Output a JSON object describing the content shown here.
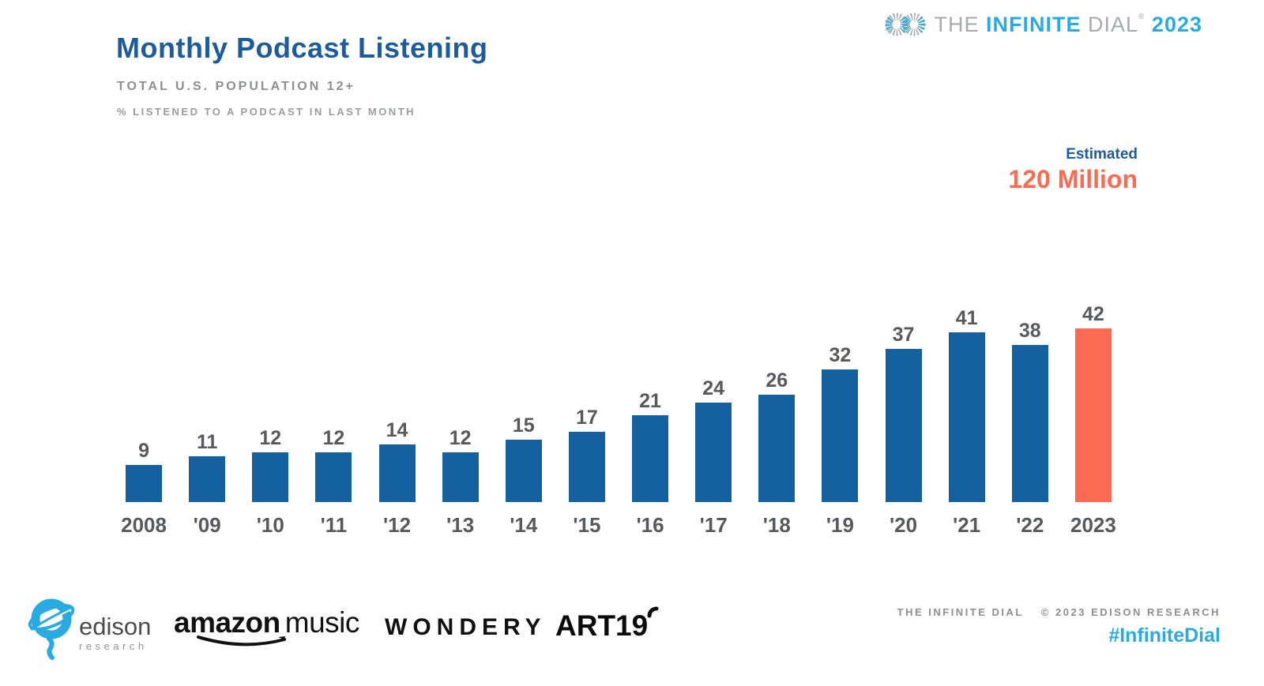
{
  "header": {
    "title": "Monthly Podcast Listening",
    "subtitle1": "TOTAL U.S. POPULATION 12+",
    "subtitle2": "% LISTENED TO A PODCAST IN LAST MONTH"
  },
  "brand_logo": {
    "the": "THE",
    "infinite": "INFINITE",
    "dial": "DIAL",
    "registered": "®",
    "year": "2023",
    "gray": "#A7A9AC",
    "lightblue": "#29ABE2"
  },
  "estimate": {
    "label": "Estimated",
    "value": "120 Million",
    "label_color": "#1D5C9C",
    "value_color": "#FB6A52"
  },
  "chart_data": {
    "type": "bar",
    "title": "Monthly Podcast Listening",
    "categories": [
      "2008",
      "'09",
      "'10",
      "'11",
      "'12",
      "'13",
      "'14",
      "'15",
      "'16",
      "'17",
      "'18",
      "'19",
      "'20",
      "'21",
      "'22",
      "2023"
    ],
    "values": [
      9,
      11,
      12,
      12,
      14,
      12,
      15,
      17,
      21,
      24,
      26,
      32,
      37,
      41,
      38,
      42
    ],
    "unit": "percent",
    "xlabel": "",
    "ylabel": "% listened to a podcast in last month",
    "ylim": [
      0,
      42
    ],
    "grid": false,
    "legend": "none",
    "bar_color": "#15609E",
    "highlight_color": "#FB6A52",
    "highlight_index": 15,
    "label_color": "#58595B",
    "annotation": "Estimated 120 Million"
  },
  "sponsors": {
    "edison_name": "edison",
    "edison_sub": "research",
    "amazon_word": "amazon",
    "amazon_music": "music",
    "wondery": "WONDERY",
    "art19": "ART19"
  },
  "credit": {
    "left": "THE INFINITE DIAL",
    "right": "© 2023 EDISON RESEARCH",
    "hashtag": "#InfiniteDial"
  }
}
